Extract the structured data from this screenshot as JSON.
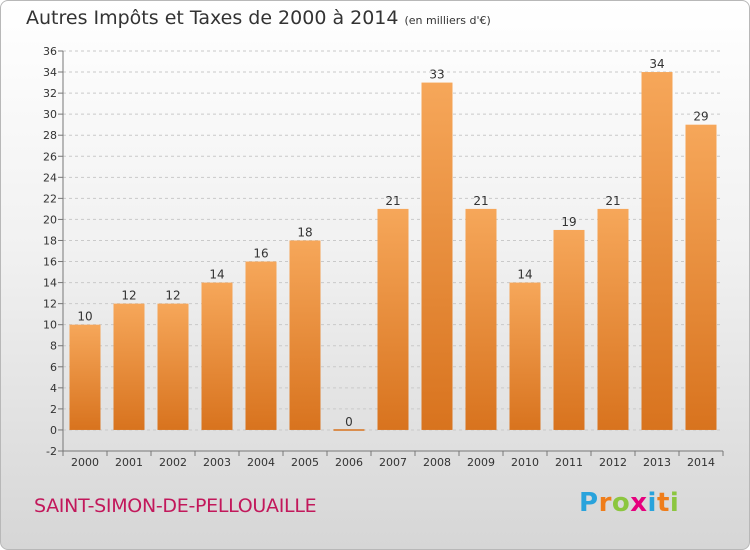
{
  "title": "Autres Impôts et Taxes de 2000 à 2014",
  "unit": "(en milliers d'€)",
  "commune": "SAINT-SIMON-DE-PELLOUAILLE",
  "logo": {
    "letters": [
      "P",
      "r",
      "o",
      "x",
      "i",
      "t",
      "i"
    ],
    "colors": [
      "#29a3dc",
      "#ef7d1a",
      "#8cc63f",
      "#e6007e",
      "#29a3dc",
      "#ef7d1a",
      "#8cc63f"
    ]
  },
  "colors": {
    "bar_light": "#f6a75a",
    "bar_dark": "#d8731e",
    "grid": "#c9c9c9",
    "axis": "#777777"
  },
  "chart_data": {
    "type": "bar",
    "categories": [
      "2000",
      "2001",
      "2002",
      "2003",
      "2004",
      "2005",
      "2006",
      "2007",
      "2008",
      "2009",
      "2010",
      "2011",
      "2012",
      "2013",
      "2014"
    ],
    "values": [
      10,
      12,
      12,
      14,
      16,
      18,
      0,
      21,
      33,
      21,
      14,
      19,
      21,
      34,
      29
    ],
    "data_labels": [
      "10",
      "12",
      "12",
      "14",
      "16",
      "18",
      "0",
      "21",
      "33",
      "21",
      "14",
      "19",
      "21",
      "34",
      "29"
    ],
    "yticks": [
      -2,
      0,
      2,
      4,
      6,
      8,
      10,
      12,
      14,
      16,
      18,
      20,
      22,
      24,
      26,
      28,
      30,
      32,
      34,
      36
    ],
    "ylim": [
      -2,
      36
    ],
    "grid": true,
    "xlabel": "",
    "ylabel": ""
  }
}
